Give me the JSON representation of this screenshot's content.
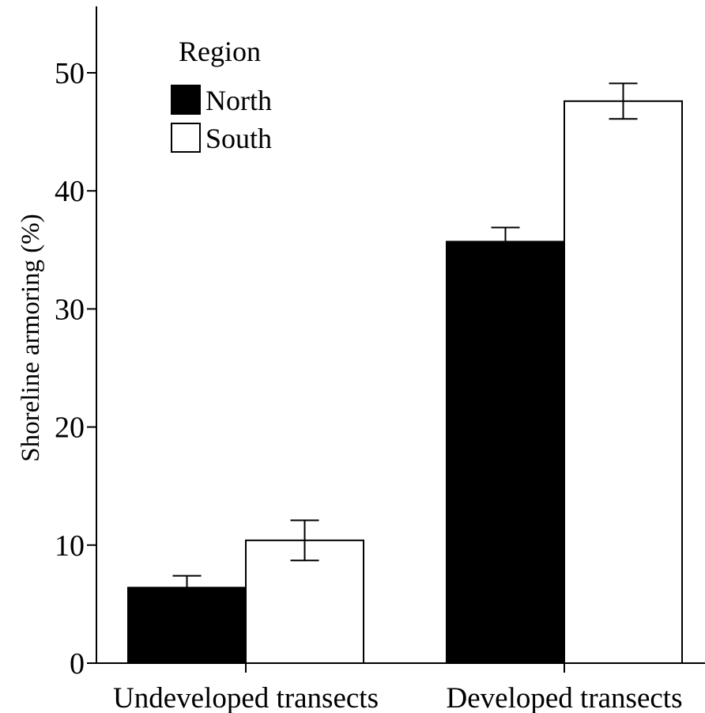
{
  "chart_data": {
    "type": "bar",
    "title": "",
    "xlabel": "",
    "ylabel": "Shoreline armoring (%)",
    "ylim": [
      0,
      55
    ],
    "yticks": [
      0,
      10,
      20,
      30,
      40,
      50
    ],
    "grid": false,
    "categories": [
      "Undeveloped transects",
      "Developed transects"
    ],
    "legend": {
      "title": "Region",
      "placement": "top-left"
    },
    "series": [
      {
        "name": "North",
        "color": "#000000",
        "values": [
          6.4,
          35.7
        ],
        "error": [
          1.0,
          1.2
        ]
      },
      {
        "name": "South",
        "color": "#ffffff",
        "values": [
          10.4,
          47.6
        ],
        "error": [
          1.7,
          1.5
        ]
      }
    ]
  }
}
